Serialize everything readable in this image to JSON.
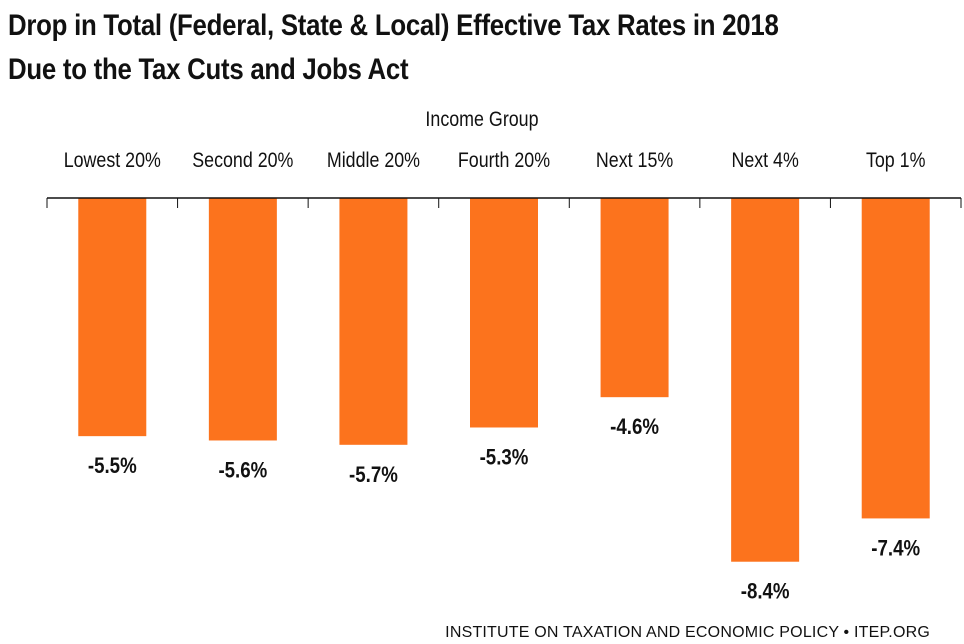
{
  "chart_data": {
    "type": "bar",
    "title_line1": "Drop in Total (Federal, State & Local) Effective Tax Rates in 2018",
    "title_line2": "Due to the Tax Cuts and Jobs Act",
    "xlabel": "Income Group",
    "ylabel": "",
    "categories": [
      "Lowest 20%",
      "Second 20%",
      "Middle 20%",
      "Fourth 20%",
      "Next 15%",
      "Next 4%",
      "Top 1%"
    ],
    "values": [
      -5.5,
      -5.6,
      -5.7,
      -5.3,
      -4.6,
      -8.4,
      -7.4
    ],
    "data_labels": [
      "-5.5%",
      "-5.6%",
      "-5.7%",
      "-5.3%",
      "-4.6%",
      "-8.4%",
      "-7.4%"
    ],
    "ylim": [
      -8.4,
      0
    ],
    "grid": false,
    "legend": "none",
    "bar_color": "#FC731D"
  },
  "source": "INSTITUTE ON TAXATION AND ECONOMIC POLICY • ITEP.ORG"
}
